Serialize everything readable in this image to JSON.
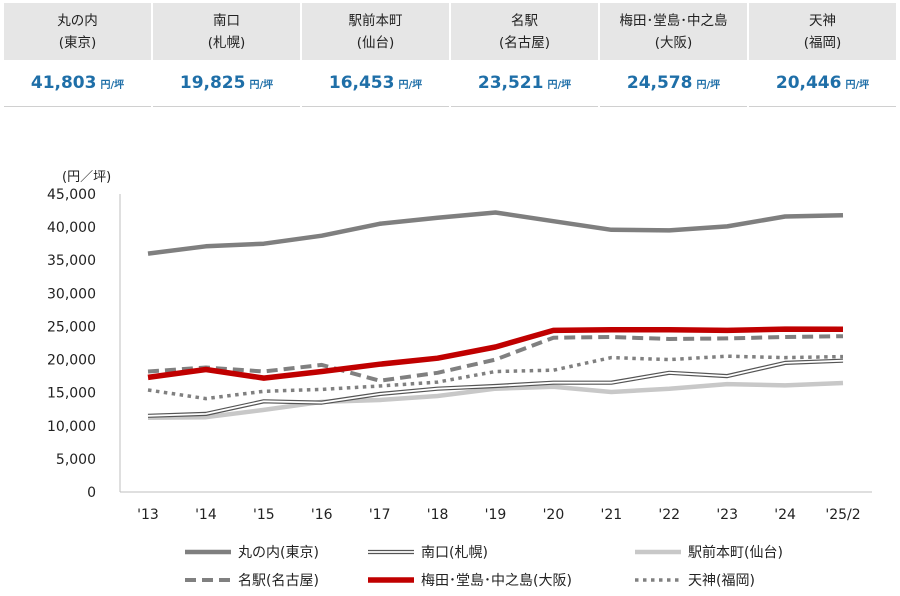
{
  "summary": [
    {
      "name": "丸の内",
      "sub": "(東京)",
      "value": "41,803",
      "unit": "円/坪"
    },
    {
      "name": "南口",
      "sub": "(札幌)",
      "value": "19,825",
      "unit": "円/坪"
    },
    {
      "name": "駅前本町",
      "sub": "(仙台)",
      "value": "16,453",
      "unit": "円/坪"
    },
    {
      "name": "名駅",
      "sub": "(名古屋)",
      "value": "23,521",
      "unit": "円/坪"
    },
    {
      "name": "梅田･堂島･中之島",
      "sub": "(大阪)",
      "value": "24,578",
      "unit": "円/坪"
    },
    {
      "name": "天神",
      "sub": "(福岡)",
      "value": "20,446",
      "unit": "円/坪"
    }
  ],
  "chart_data": {
    "type": "line",
    "ylabel": "(円／坪)",
    "ylim": [
      0,
      45000
    ],
    "yticks": [
      0,
      5000,
      10000,
      15000,
      20000,
      25000,
      30000,
      35000,
      40000,
      45000
    ],
    "ytick_labels": [
      "0",
      "5,000",
      "10,000",
      "15,000",
      "20,000",
      "25,000",
      "30,000",
      "35,000",
      "40,000",
      "45,000"
    ],
    "categories": [
      "'13",
      "'14",
      "'15",
      "'16",
      "'17",
      "'18",
      "'19",
      "'20",
      "'21",
      "'22",
      "'23",
      "'24",
      "'25/2"
    ],
    "grid": false,
    "legend_position": "bottom",
    "series": [
      {
        "name": "丸の内(東京)",
        "style": "thick-solid",
        "color": "#7f7f7f",
        "values": [
          36000,
          37100,
          37500,
          38700,
          40500,
          41400,
          42200,
          40900,
          39600,
          39500,
          40100,
          41600,
          41803
        ]
      },
      {
        "name": "南口(札幌)",
        "style": "double",
        "color": "#555555",
        "values": [
          11500,
          11800,
          13700,
          13500,
          14800,
          15600,
          16000,
          16500,
          16500,
          18000,
          17500,
          19500,
          19825
        ]
      },
      {
        "name": "駅前本町(仙台)",
        "style": "thick-light",
        "color": "#c8c8c8",
        "values": [
          11200,
          11300,
          12400,
          13600,
          13900,
          14500,
          15600,
          15900,
          15100,
          15600,
          16300,
          16100,
          16453
        ]
      },
      {
        "name": "名駅(名古屋)",
        "style": "dashed",
        "color": "#808080",
        "values": [
          18200,
          18800,
          18200,
          19200,
          16800,
          18000,
          20000,
          23300,
          23400,
          23100,
          23200,
          23400,
          23521
        ]
      },
      {
        "name": "梅田･堂島･中之島(大阪)",
        "style": "thick-red",
        "color": "#c00000",
        "values": [
          17300,
          18500,
          17200,
          18200,
          19300,
          20200,
          21900,
          24400,
          24500,
          24500,
          24400,
          24600,
          24578
        ]
      },
      {
        "name": "天神(福岡)",
        "style": "dotted",
        "color": "#808080",
        "values": [
          15400,
          14100,
          15200,
          15500,
          16000,
          16600,
          18200,
          18400,
          20300,
          20000,
          20500,
          20300,
          20446
        ]
      }
    ]
  }
}
